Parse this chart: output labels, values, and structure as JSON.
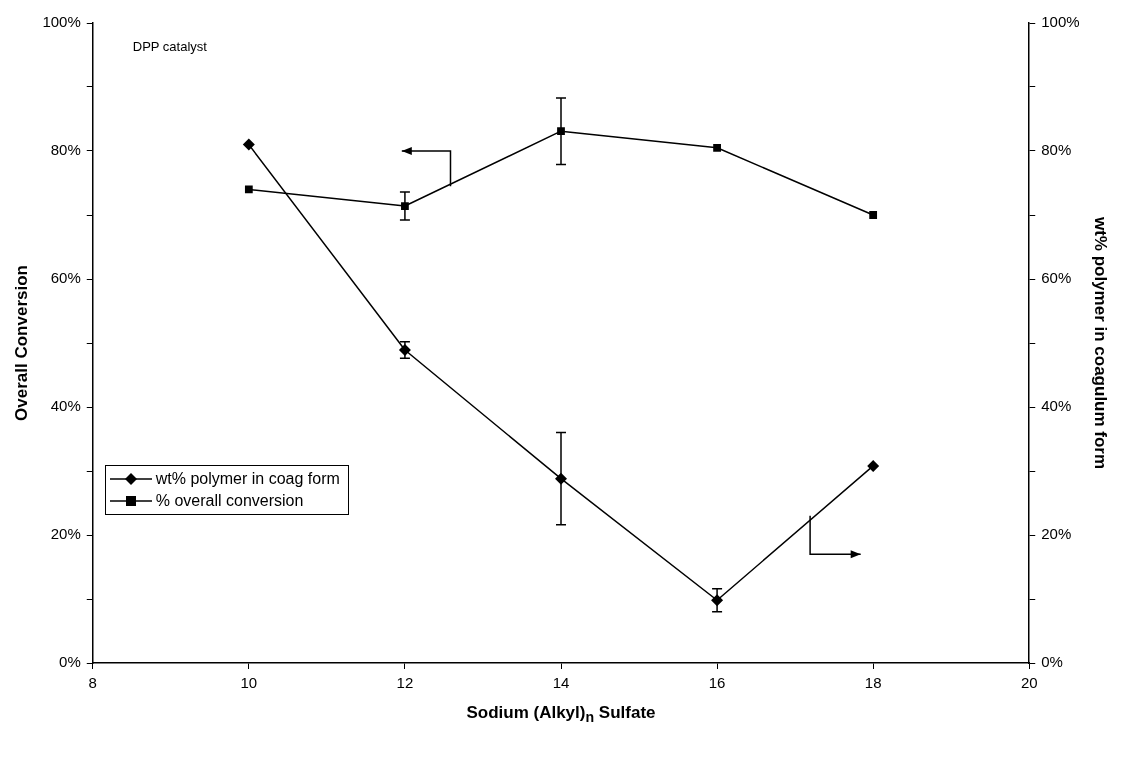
{
  "chart_data": {
    "type": "line",
    "xlabel": "Sodium (Alkyl)$_{n}$ Sulfate",
    "ylabel": "Overall Conversion",
    "y2label": "wt% polymer in coagulum form",
    "x": [
      10,
      12,
      14,
      16,
      18
    ],
    "series": [
      {
        "name": "wt% polymer in coag form",
        "color": "#000000",
        "marker": "diamond",
        "axis": "y2",
        "values": [
          81,
          48.9,
          28.8,
          9.8,
          30.8
        ],
        "errors": [
          null,
          1.3,
          7.2,
          1.8,
          null
        ]
      },
      {
        "name": "% overall conversion",
        "color": "#000000",
        "marker": "square",
        "values": [
          74,
          71.4,
          83.1,
          80.5,
          70
        ],
        "errors": [
          null,
          2.2,
          5.2,
          null,
          null
        ]
      }
    ],
    "xlim": [
      8,
      20
    ],
    "xticks": [
      8,
      10,
      12,
      14,
      16,
      18,
      20
    ],
    "ylim": [
      0,
      100
    ],
    "yticks": [
      {
        "value": 0,
        "label": "0%"
      },
      {
        "value": 10,
        "label": null
      },
      {
        "value": 20,
        "label": "20%"
      },
      {
        "value": 30,
        "label": null
      },
      {
        "value": 40,
        "label": "40%"
      },
      {
        "value": 50,
        "label": null
      },
      {
        "value": 60,
        "label": "60%"
      },
      {
        "value": 70,
        "label": null
      },
      {
        "value": 80,
        "label": "80%"
      },
      {
        "value": 90,
        "label": null
      },
      {
        "value": 100,
        "label": "100%"
      }
    ],
    "y2lim": [
      0,
      100
    ],
    "y2ticks": [
      {
        "value": 0,
        "label": "0%"
      },
      {
        "value": 10,
        "label": null
      },
      {
        "value": 20,
        "label": "20%"
      },
      {
        "value": 30,
        "label": null
      },
      {
        "value": 40,
        "label": "40%"
      },
      {
        "value": 50,
        "label": null
      },
      {
        "value": 60,
        "label": "60%"
      },
      {
        "value": 70,
        "label": null
      },
      {
        "value": 80,
        "label": "80%"
      },
      {
        "value": 90,
        "label": null
      },
      {
        "value": 100,
        "label": "100%"
      }
    ],
    "annotations": [
      "DPP catalyst"
    ],
    "grid": false,
    "legend": "bottom left",
    "line_style": "solid"
  }
}
